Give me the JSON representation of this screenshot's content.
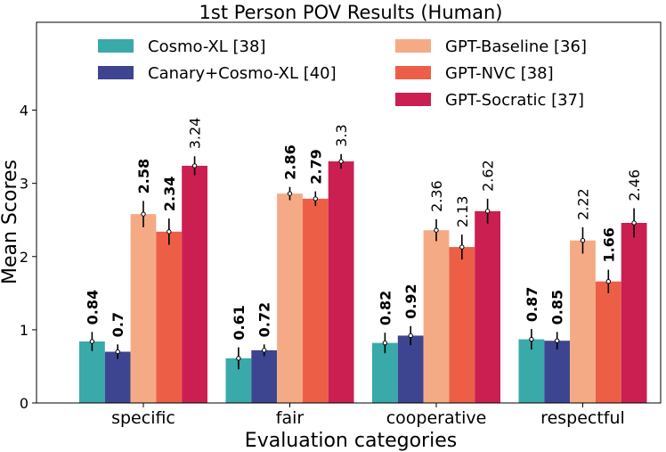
{
  "chart_data": {
    "type": "bar",
    "title": "1st Person POV Results (Human)",
    "xlabel": "Evaluation categories",
    "ylabel": "Mean Scores",
    "ylim": [
      0,
      5.2
    ],
    "yticks": [
      0,
      1,
      2,
      3,
      4
    ],
    "categories": [
      "specific",
      "fair",
      "cooperative",
      "respectful"
    ],
    "legend_position": "upper",
    "series": [
      {
        "name": "Cosmo-XL [38]",
        "color": "#3aa9a9",
        "values": [
          0.84,
          0.61,
          0.82,
          0.87
        ],
        "errors": [
          0.13,
          0.15,
          0.14,
          0.14
        ],
        "labels": [
          "0.84",
          "0.61",
          "0.82",
          "0.87"
        ],
        "bold": true
      },
      {
        "name": "Canary+Cosmo-XL [40]",
        "color": "#3d4590",
        "values": [
          0.7,
          0.72,
          0.92,
          0.85
        ],
        "errors": [
          0.1,
          0.08,
          0.13,
          0.12
        ],
        "labels": [
          "0.7",
          "0.72",
          "0.92",
          "0.85"
        ],
        "bold": true
      },
      {
        "name": "GPT-Baseline [36]",
        "color": "#f4ab85",
        "values": [
          2.58,
          2.86,
          2.36,
          2.22
        ],
        "errors": [
          0.18,
          0.09,
          0.15,
          0.18
        ],
        "labels": [
          "2.58",
          "2.86",
          "2.36",
          "2.22"
        ],
        "bold": [
          true,
          true,
          false,
          false
        ]
      },
      {
        "name": "GPT-NVC [38]",
        "color": "#ec5f46",
        "values": [
          2.34,
          2.79,
          2.13,
          1.66
        ],
        "errors": [
          0.18,
          0.1,
          0.17,
          0.16
        ],
        "labels": [
          "2.34",
          "2.79",
          "2.13",
          "1.66"
        ],
        "bold": [
          true,
          true,
          false,
          true
        ]
      },
      {
        "name": "GPT-Socratic [37]",
        "color": "#cb1f52",
        "values": [
          3.24,
          3.3,
          2.62,
          2.46
        ],
        "errors": [
          0.13,
          0.1,
          0.17,
          0.2
        ],
        "labels": [
          "3.24",
          "3.3",
          "2.62",
          "2.46"
        ],
        "bold": false
      }
    ]
  }
}
